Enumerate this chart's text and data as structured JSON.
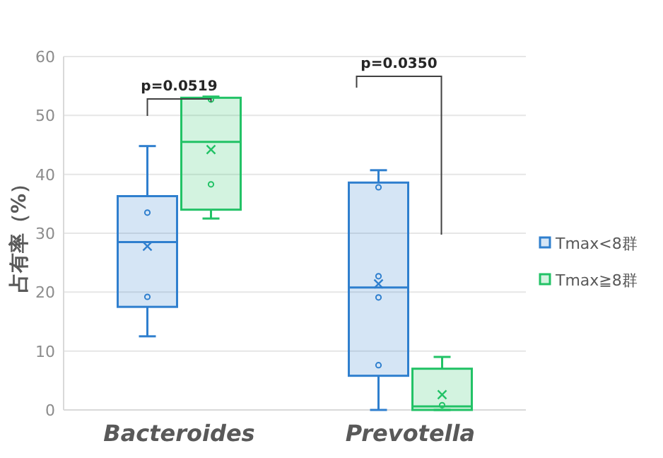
{
  "chart_data": {
    "type": "box",
    "ylabel": "占有率（%）",
    "categories": [
      "Bacteroides",
      "Prevotella"
    ],
    "ylim": [
      0,
      60
    ],
    "yticks": [
      0,
      10,
      20,
      30,
      40,
      50,
      60
    ],
    "grid": "y",
    "legend": "right",
    "series": [
      {
        "name": "Tmax<8群",
        "color": "#2f7fce",
        "boxes": [
          {
            "low": 12.5,
            "q1": 17.5,
            "median": 28.5,
            "q3": 36.3,
            "high": 44.8,
            "mean": 27.8,
            "outliers": [
              33.5,
              19.2
            ]
          },
          {
            "low": 0,
            "q1": 5.8,
            "median": 20.8,
            "q3": 38.6,
            "high": 40.7,
            "mean": 21.4,
            "outliers": [
              37.8,
              22.7,
              19.1,
              7.6
            ]
          }
        ]
      },
      {
        "name": "Tmax≧8群",
        "color": "#22c266",
        "boxes": [
          {
            "low": 32.5,
            "q1": 34,
            "median": 45.5,
            "q3": 53,
            "high": 53.2,
            "mean": 44.2,
            "outliers": [
              52.7,
              38.3
            ]
          },
          {
            "low": 0,
            "q1": 0,
            "median": 0.6,
            "q3": 7,
            "high": 9,
            "mean": 2.6,
            "outliers": [
              0.8
            ]
          }
        ]
      }
    ],
    "annotations": [
      "p=0.0519",
      "p=0.0350"
    ]
  }
}
